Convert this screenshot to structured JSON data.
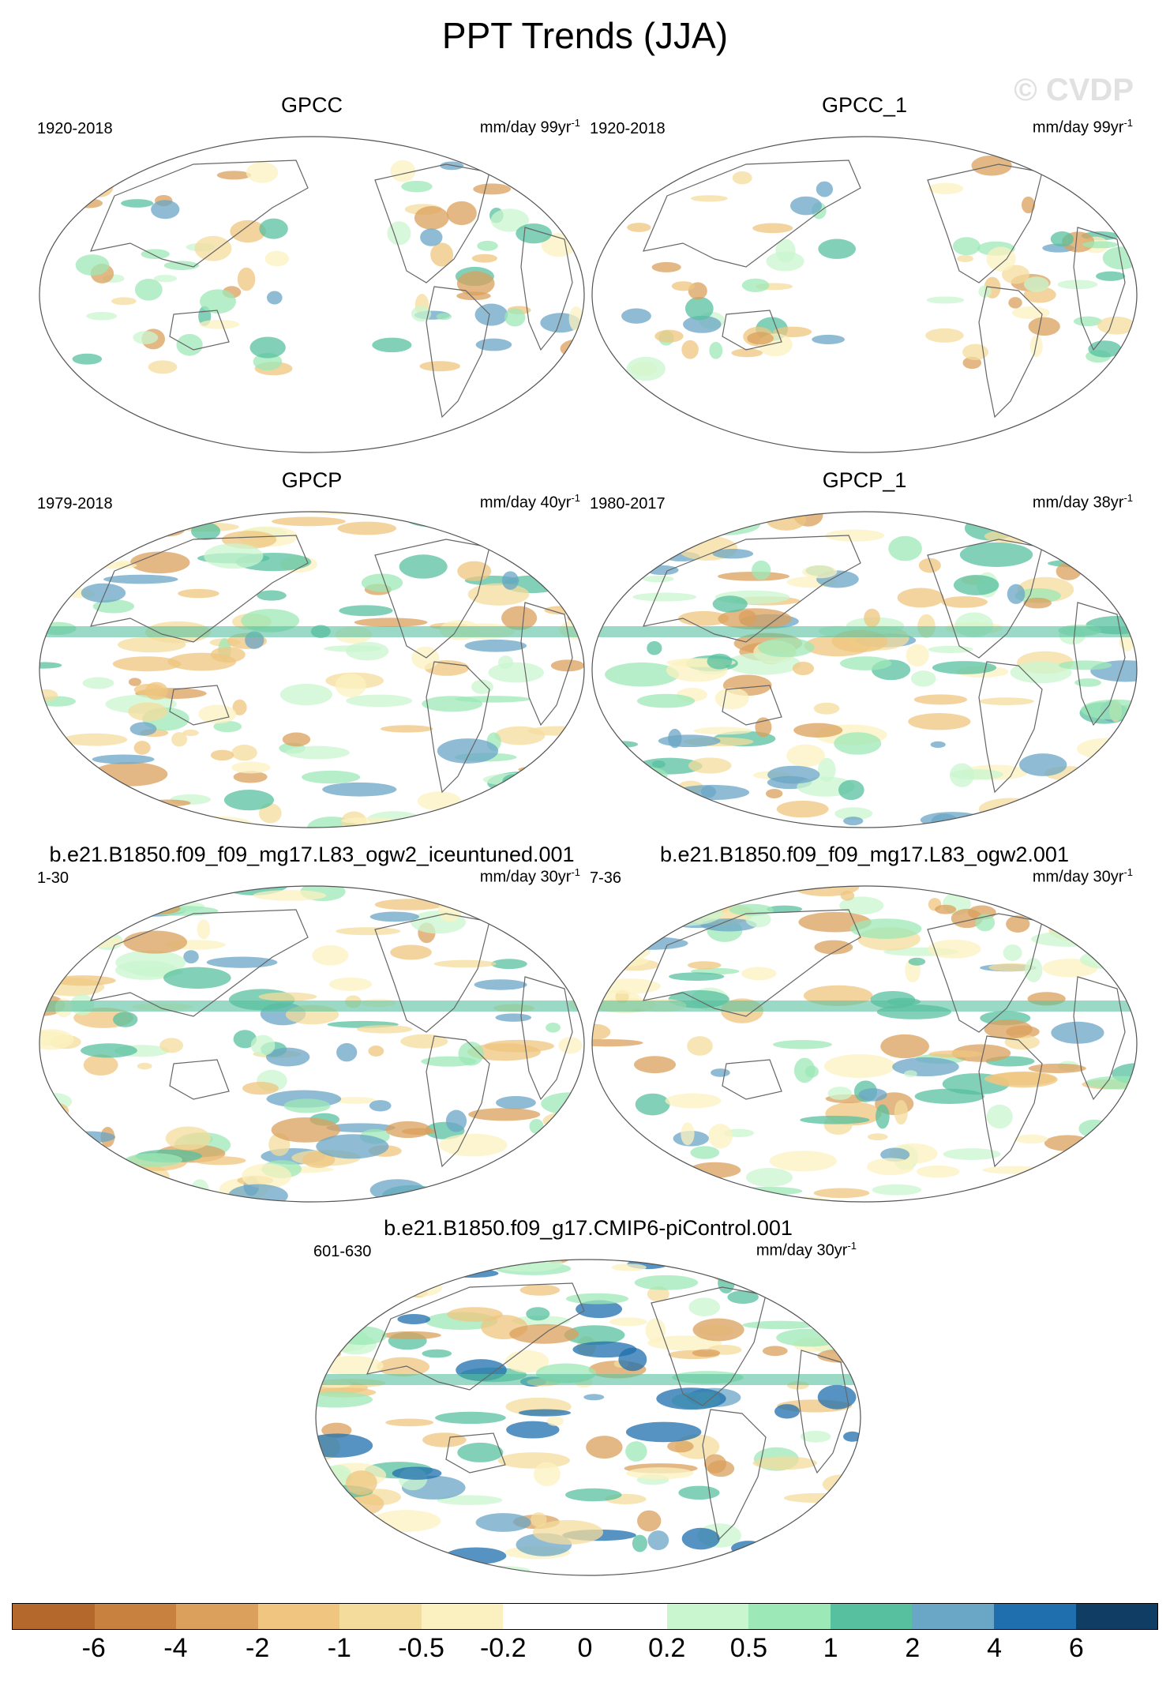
{
  "title": "PPT Trends (JJA)",
  "watermark": "© CVDP",
  "panels": [
    {
      "title": "GPCC",
      "period": "1920-2018",
      "units_base": "mm/day 99yr",
      "units_exp": "-1",
      "intensity": "low"
    },
    {
      "title": "GPCC_1",
      "period": "1920-2018",
      "units_base": "mm/day 99yr",
      "units_exp": "-1",
      "intensity": "low"
    },
    {
      "title": "GPCP",
      "period": "1979-2018",
      "units_base": "mm/day 40yr",
      "units_exp": "-1",
      "intensity": "medium"
    },
    {
      "title": "GPCP_1",
      "period": "1980-2017",
      "units_base": "mm/day 38yr",
      "units_exp": "-1",
      "intensity": "medium"
    },
    {
      "title": "b.e21.B1850.f09_f09_mg17.L83_ogw2_iceuntuned.001",
      "period": "1-30",
      "units_base": "mm/day 30yr",
      "units_exp": "-1",
      "intensity": "medium"
    },
    {
      "title": "b.e21.B1850.f09_f09_mg17.L83_ogw2.001",
      "period": "7-36",
      "units_base": "mm/day 30yr",
      "units_exp": "-1",
      "intensity": "medium"
    },
    {
      "title": "b.e21.B1850.f09_g17.CMIP6-piControl.001",
      "period": "601-630",
      "units_base": "mm/day 30yr",
      "units_exp": "-1",
      "intensity": "high"
    }
  ],
  "colorbar": {
    "colors": [
      "#b5682c",
      "#c9813f",
      "#dba05c",
      "#efc57f",
      "#f4dc9c",
      "#fbf1c0",
      "#ffffff",
      "#ffffff",
      "#c9f5cf",
      "#9ce8b7",
      "#57c09f",
      "#6aa6c6",
      "#1f6fae",
      "#0f3d63"
    ],
    "labels": [
      "-6",
      "-4",
      "-2",
      "-1",
      "-0.5",
      "-0.2",
      "0",
      "0.2",
      "0.5",
      "1",
      "2",
      "4",
      "6"
    ]
  }
}
